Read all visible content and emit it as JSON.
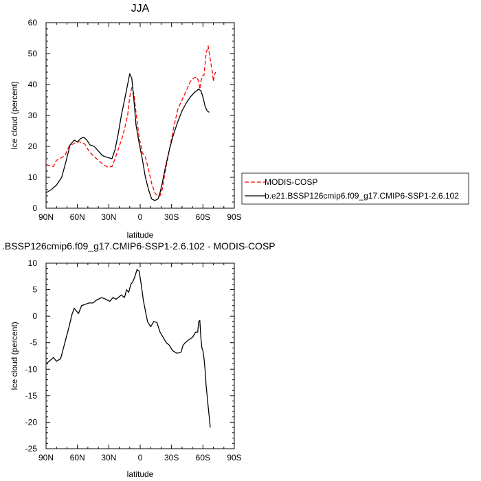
{
  "chart_data": [
    {
      "type": "line",
      "title": "JJA",
      "xlabel": "latitude",
      "ylabel": "Ice cloud (percent)",
      "xlim": [
        90,
        -90
      ],
      "ylim": [
        0,
        60
      ],
      "xticks": [
        90,
        60,
        30,
        0,
        -30,
        -60,
        -90
      ],
      "xtick_labels": [
        "90N",
        "60N",
        "30N",
        "0",
        "30S",
        "60S",
        "90S"
      ],
      "yticks": [
        0,
        10,
        20,
        30,
        40,
        50,
        60
      ],
      "ytick_labels": [
        "0",
        "10",
        "20",
        "30",
        "40",
        "50",
        "60"
      ],
      "legend_position": "right",
      "series": [
        {
          "name": "MODIS-COSP",
          "color": "#ff0000",
          "style": "dashed",
          "x": [
            90,
            87,
            83,
            80,
            77,
            72,
            68,
            63,
            58,
            53,
            49,
            45,
            40,
            35,
            31,
            27,
            24,
            20,
            17,
            14,
            12,
            10,
            8,
            6,
            4,
            1,
            -2,
            -5,
            -8,
            -11,
            -14,
            -17,
            -19,
            -21,
            -24,
            -28,
            -32,
            -36,
            -40,
            -44,
            -48,
            -51,
            -54,
            -56,
            -57,
            -58,
            -60,
            -61,
            -63,
            -65,
            -67,
            -69,
            -70,
            -71,
            -72
          ],
          "y": [
            14,
            13.8,
            13.5,
            15.5,
            16,
            17,
            20,
            21,
            21.5,
            20.8,
            18.5,
            17,
            15.5,
            14,
            13.3,
            13.5,
            16,
            20,
            23,
            27,
            30,
            36,
            39,
            37,
            31,
            23,
            18,
            16.5,
            12.5,
            8,
            5,
            3.8,
            4,
            6,
            12,
            19,
            26,
            32,
            35,
            38,
            41,
            42,
            42.5,
            41,
            38.5,
            41,
            43,
            43,
            50,
            52.5,
            48,
            44,
            41,
            43,
            44
          ]
        },
        {
          "name": "b.e21.BSSP126cmip6.f09_g17.CMIP6-SSP1-2.6.102",
          "color": "#000000",
          "style": "solid",
          "x": [
            90,
            85,
            80,
            75,
            71,
            67,
            63,
            60,
            57,
            54,
            51,
            48,
            44,
            40,
            36,
            32,
            27,
            24,
            21,
            18,
            15,
            12,
            10,
            8,
            6,
            4,
            1,
            -2,
            -5,
            -8,
            -11,
            -14,
            -17,
            -19,
            -21,
            -24,
            -28,
            -32,
            -36,
            -40,
            -44,
            -48,
            -52,
            -56,
            -58,
            -60,
            -62,
            -64,
            -66
          ],
          "y": [
            5,
            6,
            7.5,
            10,
            15,
            20.5,
            22,
            21.5,
            22.5,
            23,
            22,
            20.5,
            20,
            18.5,
            17,
            16.5,
            16,
            19,
            24,
            30,
            35,
            40,
            43.5,
            42,
            35,
            27,
            21,
            16,
            10,
            6,
            3,
            2.5,
            3,
            5,
            8,
            13,
            19,
            24,
            28,
            31.5,
            34,
            36,
            37.5,
            38.5,
            38,
            36,
            33,
            31.5,
            31
          ]
        }
      ]
    },
    {
      "type": "line",
      "title": ".BSSP126cmip6.f09_g17.CMIP6-SSP1-2.6.102 - MODIS-COSP",
      "xlabel": "latitude",
      "ylabel": "Ice cloud (percent)",
      "xlim": [
        90,
        -90
      ],
      "ylim": [
        -25,
        10
      ],
      "xticks": [
        90,
        60,
        30,
        0,
        -30,
        -60,
        -90
      ],
      "xtick_labels": [
        "90N",
        "60N",
        "30N",
        "0",
        "30S",
        "60S",
        "90S"
      ],
      "yticks": [
        -25,
        -20,
        -15,
        -10,
        -5,
        0,
        5,
        10
      ],
      "ytick_labels": [
        "-25",
        "-20",
        "-15",
        "-10",
        "-5",
        "0",
        "5",
        "10"
      ],
      "series": [
        {
          "name": "",
          "color": "#000000",
          "style": "solid",
          "x": [
            90,
            87,
            83,
            80,
            76,
            72,
            68,
            65,
            63,
            61,
            59,
            56,
            53,
            49,
            45,
            42,
            40,
            37,
            34,
            31,
            29,
            26,
            23,
            21,
            18,
            15,
            13,
            11,
            9,
            7,
            5,
            3,
            1,
            -1,
            -3,
            -5,
            -7,
            -10,
            -13,
            -16,
            -19,
            -22,
            -25,
            -28,
            -31,
            -35,
            -39,
            -41,
            -43,
            -46,
            -50,
            -53,
            -55,
            -56,
            -57,
            -58,
            -59,
            -60,
            -61,
            -62,
            -63,
            -64,
            -65,
            -66,
            -67
          ],
          "y": [
            -9,
            -8.5,
            -7.8,
            -8.5,
            -8,
            -5,
            -2,
            0.5,
            1.5,
            1,
            0.5,
            2,
            2.2,
            2.5,
            2.5,
            3,
            3.2,
            3.5,
            3.3,
            3,
            2.8,
            3.5,
            3.2,
            3.5,
            4,
            3.5,
            5,
            4.5,
            6,
            6.5,
            7.5,
            8.8,
            8.5,
            6,
            3,
            1,
            -1,
            -2,
            -1,
            -1.2,
            -3,
            -4,
            -5,
            -5.5,
            -6.5,
            -7,
            -6.8,
            -5.5,
            -5,
            -4.5,
            -4,
            -3,
            -3,
            -1,
            -0.8,
            -4,
            -6,
            -6.5,
            -8,
            -10,
            -13,
            -15,
            -17,
            -19,
            -21
          ]
        }
      ]
    }
  ]
}
